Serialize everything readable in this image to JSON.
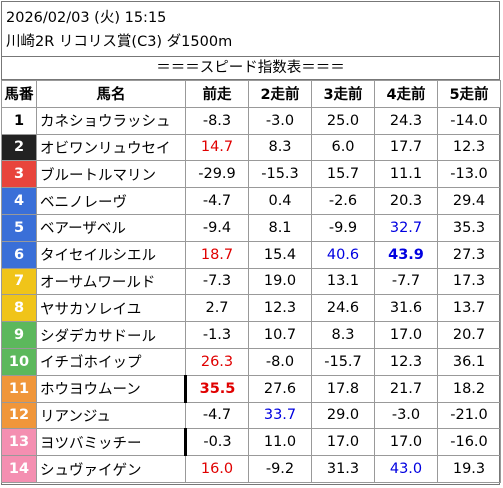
{
  "header": {
    "datetime": "2026/02/03 (火) 15:15",
    "race": "川崎2R リコリス賞(C3) ダ1500m"
  },
  "banner": "＝＝＝スピード指数表＝＝＝",
  "columns": [
    "馬番",
    "馬名",
    "前走",
    "2走前",
    "3走前",
    "4走前",
    "5走前"
  ],
  "colors": {
    "red": "#e00000",
    "blue": "#0000e0"
  },
  "rows": [
    {
      "num": "1",
      "name": "カネショウラッシュ",
      "bg": "#ffffff",
      "fg": "#000000",
      "vals": [
        "-8.3",
        "-3.0",
        "25.0",
        "24.3",
        "-14.0"
      ],
      "styles": [
        "",
        "",
        "",
        "",
        ""
      ]
    },
    {
      "num": "2",
      "name": "オビワンリュウセイ",
      "bg": "#222222",
      "fg": "#ffffff",
      "vals": [
        "14.7",
        "8.3",
        "6.0",
        "17.7",
        "12.3"
      ],
      "styles": [
        "red",
        "",
        "",
        "",
        ""
      ]
    },
    {
      "num": "3",
      "name": "ブルートルマリン",
      "bg": "#e8453c",
      "fg": "#ffffff",
      "vals": [
        "-29.9",
        "-15.3",
        "15.7",
        "11.1",
        "-13.0"
      ],
      "styles": [
        "",
        "",
        "",
        "",
        ""
      ]
    },
    {
      "num": "4",
      "name": "ベニノレーヴ",
      "bg": "#3a6fd8",
      "fg": "#ffffff",
      "vals": [
        "-4.7",
        "0.4",
        "-2.6",
        "20.3",
        "29.4"
      ],
      "styles": [
        "",
        "",
        "",
        "",
        ""
      ]
    },
    {
      "num": "5",
      "name": "ベアーザベル",
      "bg": "#3a6fd8",
      "fg": "#ffffff",
      "vals": [
        "-9.4",
        "8.1",
        "-9.9",
        "32.7",
        "35.3"
      ],
      "styles": [
        "",
        "",
        "",
        "blue",
        ""
      ]
    },
    {
      "num": "6",
      "name": "タイセイルシエル",
      "bg": "#3a6fd8",
      "fg": "#ffffff",
      "vals": [
        "18.7",
        "15.4",
        "40.6",
        "43.9",
        "27.3"
      ],
      "styles": [
        "red",
        "",
        "blue",
        "blue bold",
        ""
      ]
    },
    {
      "num": "7",
      "name": "オーサムワールド",
      "bg": "#f0c419",
      "fg": "#ffffff",
      "vals": [
        "-7.3",
        "19.0",
        "13.1",
        "-7.7",
        "17.3"
      ],
      "styles": [
        "",
        "",
        "",
        "",
        ""
      ]
    },
    {
      "num": "8",
      "name": "ヤサカソレイユ",
      "bg": "#f0c419",
      "fg": "#ffffff",
      "vals": [
        "2.7",
        "12.3",
        "24.6",
        "31.6",
        "13.7"
      ],
      "styles": [
        "",
        "",
        "",
        "",
        ""
      ]
    },
    {
      "num": "9",
      "name": "シダデカサドール",
      "bg": "#5cb85c",
      "fg": "#ffffff",
      "vals": [
        "-1.3",
        "10.7",
        "8.3",
        "17.0",
        "20.7"
      ],
      "styles": [
        "",
        "",
        "",
        "",
        ""
      ]
    },
    {
      "num": "10",
      "name": "イチゴホイップ",
      "bg": "#5cb85c",
      "fg": "#ffffff",
      "vals": [
        "26.3",
        "-8.0",
        "-15.7",
        "12.3",
        "36.1"
      ],
      "styles": [
        "red",
        "",
        "",
        "",
        ""
      ]
    },
    {
      "num": "11",
      "name": "ホウヨウムーン",
      "bg": "#f0963a",
      "fg": "#ffffff",
      "vals": [
        "35.5",
        "27.6",
        "17.8",
        "21.7",
        "18.2"
      ],
      "styles": [
        "red bold mark",
        "",
        "",
        "",
        ""
      ]
    },
    {
      "num": "12",
      "name": "リアンジュ",
      "bg": "#f0963a",
      "fg": "#ffffff",
      "vals": [
        "-4.7",
        "33.7",
        "29.0",
        "-3.0",
        "-21.0"
      ],
      "styles": [
        "",
        "blue",
        "",
        "",
        ""
      ]
    },
    {
      "num": "13",
      "name": "ヨツバミッチー",
      "bg": "#f48fb1",
      "fg": "#ffffff",
      "vals": [
        "-0.3",
        "11.0",
        "17.0",
        "17.0",
        "-16.0"
      ],
      "styles": [
        "mark",
        "",
        "",
        "",
        ""
      ]
    },
    {
      "num": "14",
      "name": "シュヴァイゲン",
      "bg": "#f48fb1",
      "fg": "#ffffff",
      "vals": [
        "16.0",
        "-9.2",
        "31.3",
        "43.0",
        "19.3"
      ],
      "styles": [
        "red",
        "",
        "",
        "blue",
        ""
      ]
    }
  ]
}
